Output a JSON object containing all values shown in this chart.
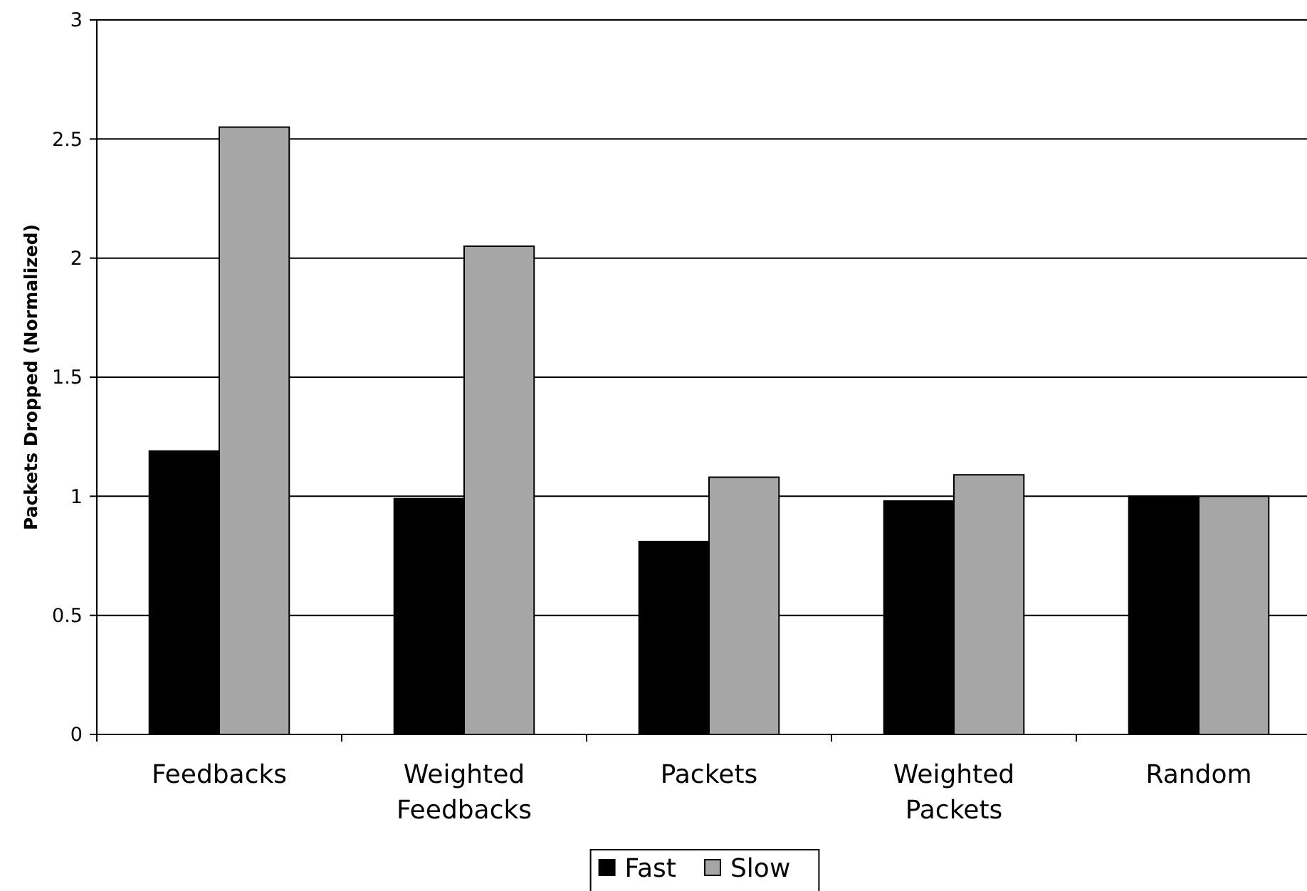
{
  "chart_data": {
    "type": "bar",
    "categories": [
      "Feedbacks",
      "Weighted Feedbacks",
      "Packets",
      "Weighted Packets",
      "Random"
    ],
    "series": [
      {
        "name": "Fast",
        "color": "#000000",
        "values": [
          1.19,
          0.99,
          0.81,
          0.98,
          1.0
        ]
      },
      {
        "name": "Slow",
        "color": "#a6a6a6",
        "values": [
          2.55,
          2.05,
          1.08,
          1.09,
          1.0
        ]
      }
    ],
    "ylabel": "Packets Dropped (Normalized)",
    "ylim": [
      0,
      3
    ],
    "yticks": [
      0,
      0.5,
      1,
      1.5,
      2,
      2.5,
      3
    ],
    "grid": "y",
    "legend": "bottom"
  }
}
